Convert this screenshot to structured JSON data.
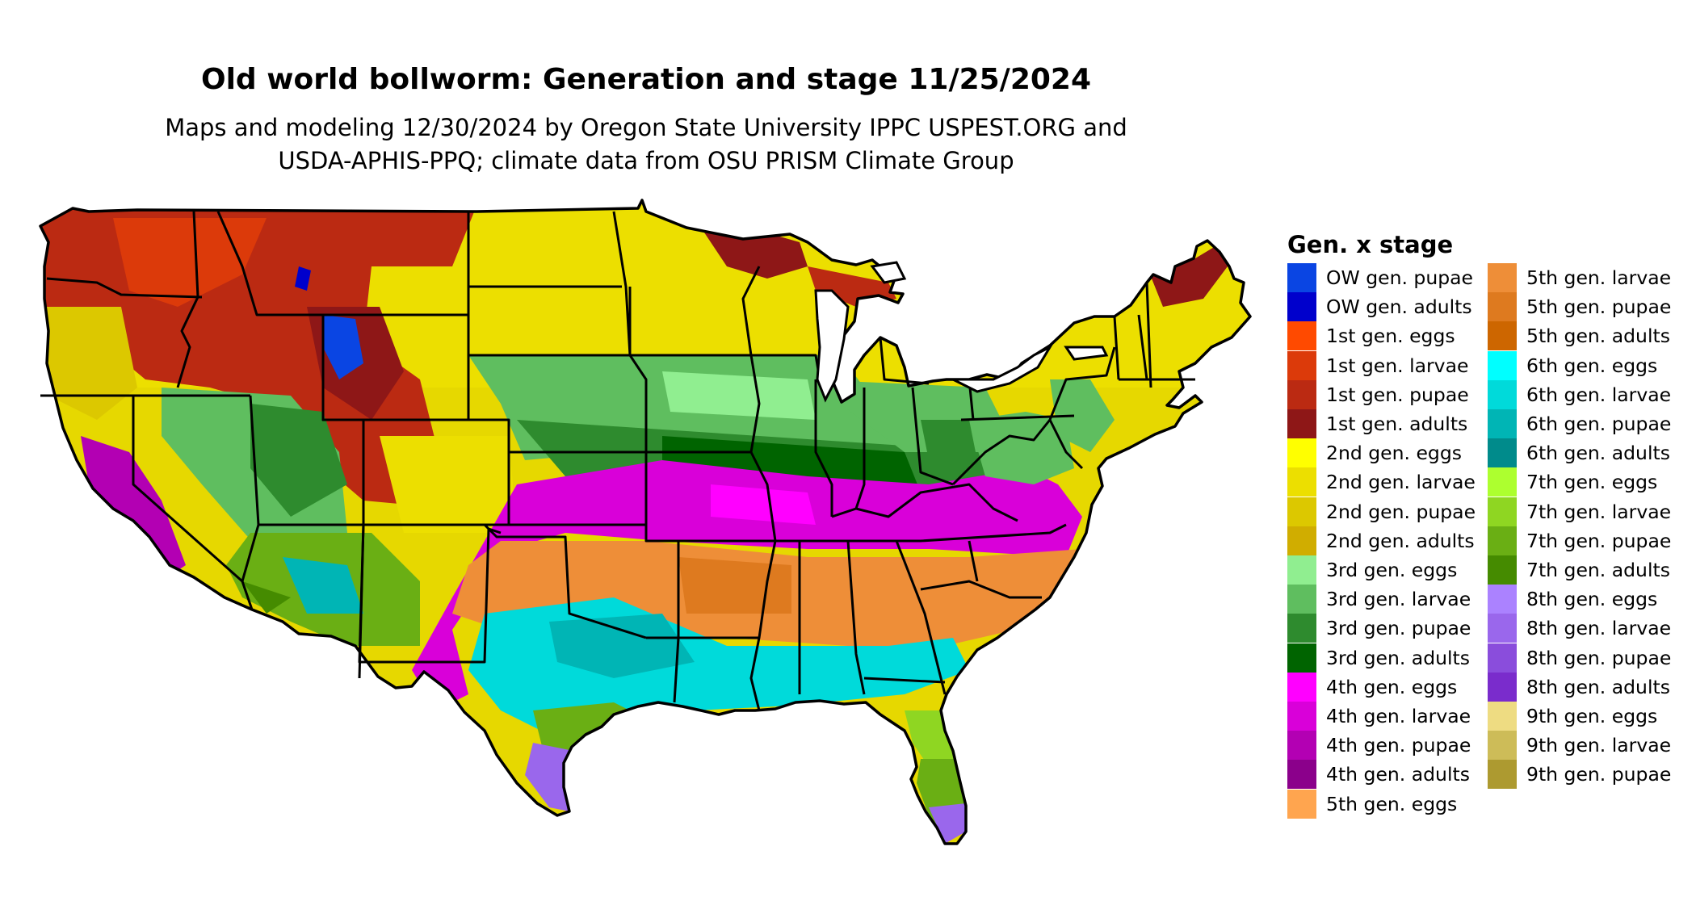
{
  "title": "Old world bollworm: Generation and stage 11/25/2024",
  "subtitle_lines": [
    "Maps and modeling 12/30/2024 by Oregon State University IPPC USPEST.ORG and",
    "USDA-APHIS-PPQ; climate data from OSU PRISM Climate Group"
  ],
  "legend": {
    "title": "Gen. x stage",
    "items": [
      {
        "label": "OW gen. pupae",
        "color": "#0a45e3"
      },
      {
        "label": "OW gen. adults",
        "color": "#0000cc"
      },
      {
        "label": "1st gen. eggs",
        "color": "#ff4a00"
      },
      {
        "label": "1st gen. larvae",
        "color": "#dc3a0a"
      },
      {
        "label": "1st gen. pupae",
        "color": "#bb2a12"
      },
      {
        "label": "1st gen. adults",
        "color": "#8e1717"
      },
      {
        "label": "2nd gen. eggs",
        "color": "#ffff00"
      },
      {
        "label": "2nd gen. larvae",
        "color": "#ecdf00"
      },
      {
        "label": "2nd gen. pupae",
        "color": "#dcc800"
      },
      {
        "label": "2nd gen. adults",
        "color": "#d0ad00"
      },
      {
        "label": "3rd gen. eggs",
        "color": "#90ee90"
      },
      {
        "label": "3rd gen. larvae",
        "color": "#5fbe5f"
      },
      {
        "label": "3rd gen. pupae",
        "color": "#2e8b2e"
      },
      {
        "label": "3rd gen. adults",
        "color": "#006400"
      },
      {
        "label": "4th gen. eggs",
        "color": "#ff00ff"
      },
      {
        "label": "4th gen. larvae",
        "color": "#d900d9"
      },
      {
        "label": "4th gen. pupae",
        "color": "#b300b3"
      },
      {
        "label": "4th gen. adults",
        "color": "#8b008b"
      },
      {
        "label": "5th gen. eggs",
        "color": "#ffa54f"
      },
      {
        "label": "5th gen. larvae",
        "color": "#ee8e38"
      },
      {
        "label": "5th gen. pupae",
        "color": "#de7a1f"
      },
      {
        "label": "5th gen. adults",
        "color": "#cd6600"
      },
      {
        "label": "6th gen. eggs",
        "color": "#00ffff"
      },
      {
        "label": "6th gen. larvae",
        "color": "#00dada"
      },
      {
        "label": "6th gen. pupae",
        "color": "#00b5b5"
      },
      {
        "label": "6th gen. adults",
        "color": "#008b8b"
      },
      {
        "label": "7th gen. eggs",
        "color": "#adff2f"
      },
      {
        "label": "7th gen. larvae",
        "color": "#8fd622"
      },
      {
        "label": "7th gen. pupae",
        "color": "#6aaf14"
      },
      {
        "label": "7th gen. adults",
        "color": "#458b00"
      },
      {
        "label": "8th gen. eggs",
        "color": "#ab82ff"
      },
      {
        "label": "8th gen. larvae",
        "color": "#9a67ec"
      },
      {
        "label": "8th gen. pupae",
        "color": "#8a4ddc"
      },
      {
        "label": "8th gen. adults",
        "color": "#7a2ccc"
      },
      {
        "label": "9th gen. eggs",
        "color": "#eedc82"
      },
      {
        "label": "9th gen. larvae",
        "color": "#cdbc58"
      },
      {
        "label": "9th gen. pupae",
        "color": "#ad9a30"
      }
    ]
  }
}
